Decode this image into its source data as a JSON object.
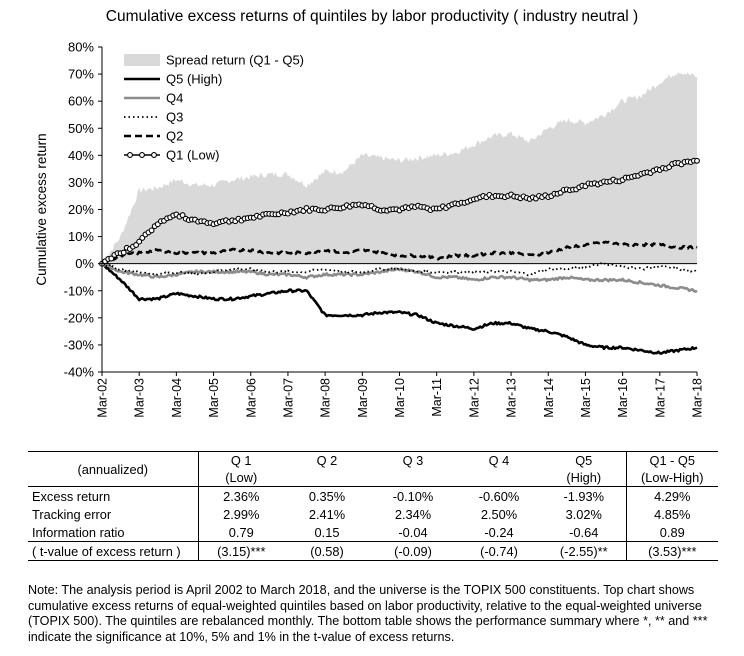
{
  "chart_data": {
    "type": "line",
    "title": "Cumulative excess returns of quintiles by labor productivity ( industry neutral )",
    "ylabel": "Cumulative excess return",
    "xlabel": "",
    "ylim": [
      -40,
      80
    ],
    "y_ticks": [
      "80%",
      "70%",
      "60%",
      "50%",
      "40%",
      "30%",
      "20%",
      "10%",
      "0%",
      "-10%",
      "-20%",
      "-30%",
      "-40%"
    ],
    "x_ticks": [
      "Mar-02",
      "Mar-03",
      "Mar-04",
      "Mar-05",
      "Mar-06",
      "Mar-07",
      "Mar-08",
      "Mar-09",
      "Mar-10",
      "Mar-11",
      "Mar-12",
      "Mar-13",
      "Mar-14",
      "Mar-15",
      "Mar-16",
      "Mar-17",
      "Mar-18"
    ],
    "x": [
      2002.0,
      2002.5,
      2003.0,
      2003.5,
      2004.0,
      2004.5,
      2005.0,
      2005.5,
      2006.0,
      2006.5,
      2007.0,
      2007.5,
      2008.0,
      2008.5,
      2009.0,
      2009.5,
      2010.0,
      2010.5,
      2011.0,
      2011.5,
      2012.0,
      2012.5,
      2013.0,
      2013.5,
      2014.0,
      2014.5,
      2015.0,
      2015.5,
      2016.0,
      2016.5,
      2017.0,
      2017.5,
      2018.0
    ],
    "series": [
      {
        "name": "Spread return (Q1 - Q5)",
        "style": "area",
        "color": "#d9d9d9",
        "values": [
          0,
          10,
          27,
          28,
          31,
          29,
          29,
          31,
          32,
          33,
          33,
          29,
          34,
          34,
          40,
          39,
          38,
          39,
          40,
          41,
          44,
          47,
          48,
          45,
          50,
          53,
          52,
          55,
          60,
          62,
          67,
          71,
          69
        ]
      },
      {
        "name": "Q5 (High)",
        "style": "solid-thick",
        "color": "#000000",
        "values": [
          0,
          -6,
          -13,
          -13,
          -11,
          -12,
          -13,
          -13,
          -12,
          -11,
          -10,
          -10,
          -19,
          -19,
          -19,
          -18,
          -18,
          -19,
          -22,
          -23,
          -24,
          -22,
          -22,
          -24,
          -25,
          -27,
          -30,
          -31,
          -31,
          -32,
          -33,
          -32,
          -31
        ]
      },
      {
        "name": "Q4",
        "style": "solid-gray",
        "color": "#8c8c8c",
        "values": [
          0,
          -3,
          -4,
          -5,
          -4,
          -3,
          -3,
          -3,
          -3,
          -4,
          -4,
          -5,
          -4,
          -4,
          -4,
          -3,
          -2,
          -3,
          -5,
          -5,
          -6,
          -5,
          -5,
          -6,
          -6,
          -5,
          -6,
          -6,
          -6,
          -7,
          -8,
          -9,
          -10
        ]
      },
      {
        "name": "Q3",
        "style": "dotted",
        "color": "#000000",
        "values": [
          0,
          -2,
          -3,
          -4,
          -3,
          -4,
          -3,
          -2,
          -2,
          -3,
          -3,
          -3,
          -2,
          -3,
          -3,
          -2,
          -2,
          -3,
          -3,
          -3,
          -3,
          -3,
          -3,
          -4,
          -2,
          -2,
          -1,
          0,
          -1,
          -2,
          -1,
          -2,
          -3
        ]
      },
      {
        "name": "Q2",
        "style": "dashed",
        "color": "#000000",
        "values": [
          0,
          3,
          4,
          5,
          4,
          4,
          4,
          5,
          5,
          4,
          4,
          4,
          5,
          4,
          5,
          4,
          3,
          3,
          2,
          3,
          3,
          4,
          4,
          3,
          4,
          6,
          7,
          8,
          7,
          7,
          7,
          6,
          6
        ]
      },
      {
        "name": "Q1 (Low)",
        "style": "circle-markers",
        "color": "#000000",
        "values": [
          0,
          4,
          8,
          15,
          18,
          16,
          15,
          16,
          17,
          18,
          19,
          20,
          20,
          21,
          22,
          20,
          20,
          21,
          20,
          22,
          24,
          25,
          25,
          24,
          25,
          27,
          29,
          30,
          31,
          33,
          35,
          37,
          38
        ]
      }
    ],
    "legend_position": "top-left"
  },
  "table": {
    "header_row_label": "(annualized)",
    "columns": [
      {
        "line1": "Q 1",
        "line2": "(Low)"
      },
      {
        "line1": "Q 2",
        "line2": ""
      },
      {
        "line1": "Q 3",
        "line2": ""
      },
      {
        "line1": "Q 4",
        "line2": ""
      },
      {
        "line1": "Q5",
        "line2": "(High)"
      },
      {
        "line1": "Q1 - Q5",
        "line2": "(Low-High)"
      }
    ],
    "rows": [
      {
        "label": "Excess return",
        "values": [
          "2.36%",
          "0.35%",
          "-0.10%",
          "-0.60%",
          "-1.93%",
          "4.29%"
        ]
      },
      {
        "label": "Tracking error",
        "values": [
          "2.99%",
          "2.41%",
          "2.34%",
          "2.50%",
          "3.02%",
          "4.85%"
        ]
      },
      {
        "label": "Information ratio",
        "values": [
          "0.79",
          "0.15",
          "-0.04",
          "-0.24",
          "-0.64",
          "0.89"
        ]
      },
      {
        "label": "( t-value of excess return )",
        "values": [
          "(3.15)***",
          "(0.58)",
          "(-0.09)",
          "(-0.74)",
          "(-2.55)**",
          "(3.53)***"
        ]
      }
    ]
  },
  "note": "Note: The analysis period is April 2002 to March 2018, and the universe is the TOPIX 500 constituents. Top chart shows cumulative excess returns of equal-weighted quintiles based on labor productivity, relative to the equal-weighted universe (TOPIX 500). The quintiles are rebalanced monthly. The bottom table shows the performance summary where *, ** and *** indicate the significance at 10%, 5% and 1% in the t-value of excess returns."
}
